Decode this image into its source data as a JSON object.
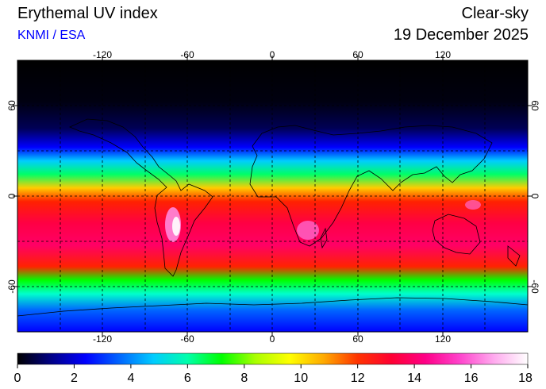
{
  "header": {
    "title": "Erythemal UV index",
    "credit": "KNMI / ESA",
    "mode": "Clear-sky",
    "date": "19 December 2025"
  },
  "map": {
    "lon_ticks": [
      "-120",
      "-60",
      "0",
      "60",
      "120"
    ],
    "lat_ticks": [
      "60",
      "0",
      "-60"
    ],
    "grid_lines": "dashed, every 30 degrees"
  },
  "colorbar": {
    "labels": [
      "0",
      "2",
      "4",
      "6",
      "8",
      "10",
      "12",
      "14",
      "16",
      "18"
    ],
    "colors": [
      "#000000",
      "#000088",
      "#0000ff",
      "#0066ff",
      "#00ccff",
      "#00ffaa",
      "#00ff00",
      "#aaff00",
      "#ffff00",
      "#ffaa00",
      "#ff3300",
      "#ff0033",
      "#ff0088",
      "#ff44cc",
      "#ffaaee",
      "#ffffff"
    ]
  }
}
